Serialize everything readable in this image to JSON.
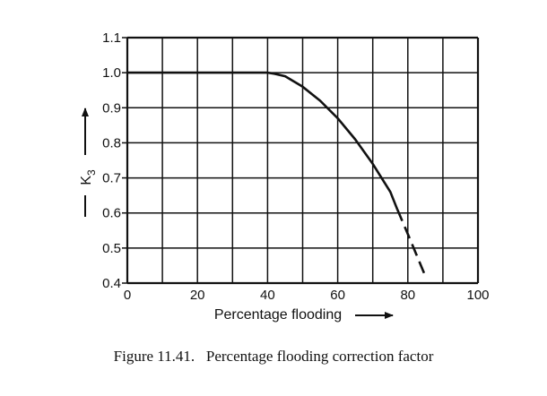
{
  "chart_data": {
    "type": "line",
    "xlabel": "Percentage flooding",
    "ylabel": "K3",
    "ylabel_main": "K",
    "ylabel_sub": "3",
    "xlim": [
      0,
      100
    ],
    "ylim": [
      0.4,
      1.1
    ],
    "x_grid_step": 10,
    "y_grid_step": 0.1,
    "grid": true,
    "x_ticks": [
      0,
      20,
      40,
      60,
      80,
      100
    ],
    "x_tick_labels": [
      "0",
      "20",
      "40",
      "60",
      "80",
      "100"
    ],
    "y_ticks": [
      0.4,
      0.5,
      0.6,
      0.7,
      0.8,
      0.9,
      1.0,
      1.1
    ],
    "y_tick_labels": [
      "0.4",
      "0.5",
      "0.6",
      "0.7",
      "0.8",
      "0.9",
      "1.0",
      "1.1"
    ],
    "series": [
      {
        "style": "solid",
        "x": [
          0,
          40,
          42,
          45,
          50,
          55,
          60,
          65,
          70,
          75,
          77
        ],
        "y": [
          1.0,
          1.0,
          0.997,
          0.99,
          0.96,
          0.92,
          0.87,
          0.81,
          0.74,
          0.66,
          0.61
        ]
      },
      {
        "style": "dashed",
        "x": [
          77,
          80,
          82.5,
          85
        ],
        "y": [
          0.61,
          0.54,
          0.48,
          0.42
        ]
      }
    ]
  },
  "caption": "Figure 11.41.   Percentage flooding correction factor"
}
